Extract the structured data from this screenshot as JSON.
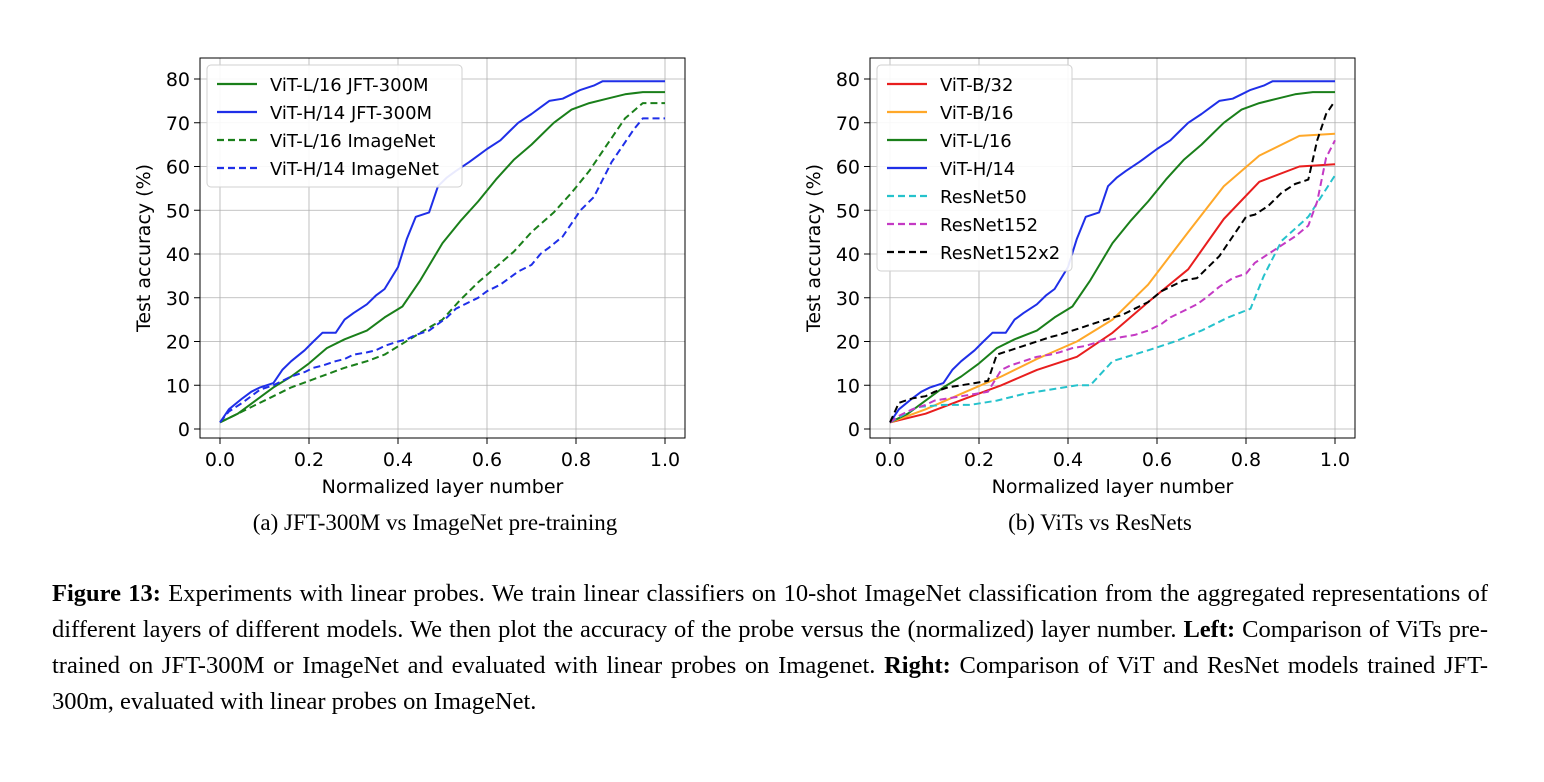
{
  "chart_data": [
    {
      "type": "line",
      "title": "",
      "xlabel": "Normalized layer number",
      "ylabel": "Test accuracy (%)",
      "xlim": [
        0.0,
        1.0
      ],
      "ylim": [
        0,
        80
      ],
      "xticks": [
        "0.0",
        "0.2",
        "0.4",
        "0.6",
        "0.8",
        "1.0"
      ],
      "yticks": [
        "0",
        "10",
        "20",
        "30",
        "40",
        "50",
        "60",
        "70",
        "80"
      ],
      "grid": true,
      "legend_position": "top-left",
      "series": [
        {
          "name": "ViT-L/16 JFT-300M",
          "color": "#1a7f1a",
          "dash": "solid",
          "x": [
            0.0,
            0.04,
            0.08,
            0.12,
            0.16,
            0.2,
            0.24,
            0.28,
            0.33,
            0.37,
            0.41,
            0.45,
            0.5,
            0.54,
            0.58,
            0.62,
            0.66,
            0.7,
            0.75,
            0.79,
            0.83,
            0.87,
            0.91,
            0.95,
            1.0
          ],
          "y": [
            1.5,
            3.5,
            6.5,
            9.5,
            12,
            15,
            18.5,
            20.5,
            22.5,
            25.5,
            28,
            34,
            42.5,
            47.5,
            52,
            57,
            61.5,
            65,
            70,
            73,
            74.5,
            75.5,
            76.5,
            77,
            77
          ]
        },
        {
          "name": "ViT-H/14 JFT-300M",
          "color": "#1f2fe8",
          "dash": "solid",
          "x": [
            0.0,
            0.02,
            0.05,
            0.07,
            0.09,
            0.12,
            0.14,
            0.16,
            0.19,
            0.21,
            0.23,
            0.26,
            0.28,
            0.3,
            0.33,
            0.35,
            0.37,
            0.4,
            0.42,
            0.44,
            0.47,
            0.49,
            0.51,
            0.53,
            0.56,
            0.58,
            0.6,
            0.63,
            0.65,
            0.67,
            0.7,
            0.72,
            0.74,
            0.77,
            0.79,
            0.81,
            0.84,
            0.86,
            0.88,
            0.91,
            0.93,
            0.95,
            0.98,
            1.0
          ],
          "y": [
            1.5,
            4.5,
            7,
            8.5,
            9.5,
            10.5,
            13.5,
            15.5,
            18,
            20,
            22,
            22,
            25,
            26.5,
            28.5,
            30.5,
            32,
            37,
            43.5,
            48.5,
            49.5,
            55.5,
            57.5,
            59,
            61,
            62.5,
            64,
            66,
            68,
            70,
            72,
            73.5,
            75,
            75.5,
            76.5,
            77.5,
            78.5,
            79.5,
            79.5,
            79.5,
            79.5,
            79.5,
            79.5,
            79.5
          ]
        },
        {
          "name": "ViT-L/16 ImageNet",
          "color": "#1a7f1a",
          "dash": "dashed",
          "x": [
            0.0,
            0.04,
            0.08,
            0.12,
            0.16,
            0.2,
            0.24,
            0.28,
            0.33,
            0.37,
            0.41,
            0.45,
            0.5,
            0.54,
            0.58,
            0.62,
            0.66,
            0.7,
            0.75,
            0.79,
            0.83,
            0.87,
            0.91,
            0.95,
            0.97,
            1.0
          ],
          "y": [
            1.5,
            3.5,
            5.5,
            7.5,
            9.5,
            11,
            12.5,
            14,
            15.5,
            17,
            19.5,
            22,
            25,
            29.5,
            33.5,
            37,
            40.5,
            45,
            49.5,
            54,
            59,
            65,
            71,
            74.5,
            74.5,
            74.5
          ]
        },
        {
          "name": "ViT-H/14 ImageNet",
          "color": "#1f2fe8",
          "dash": "dashed",
          "x": [
            0.0,
            0.02,
            0.05,
            0.07,
            0.09,
            0.12,
            0.14,
            0.16,
            0.19,
            0.21,
            0.23,
            0.26,
            0.28,
            0.3,
            0.33,
            0.35,
            0.37,
            0.4,
            0.42,
            0.44,
            0.47,
            0.49,
            0.51,
            0.53,
            0.56,
            0.58,
            0.6,
            0.63,
            0.65,
            0.67,
            0.7,
            0.72,
            0.74,
            0.77,
            0.79,
            0.81,
            0.84,
            0.86,
            0.88,
            0.91,
            0.93,
            0.95,
            0.98,
            1.0
          ],
          "y": [
            1.5,
            4,
            6,
            7.5,
            9,
            10,
            11,
            12,
            13,
            14,
            14.5,
            15.5,
            16,
            17,
            17.5,
            18,
            19,
            20,
            20.5,
            21.5,
            22.5,
            24,
            25.5,
            27.5,
            29,
            30,
            31.5,
            33,
            34.5,
            36,
            37.5,
            40,
            41.5,
            44,
            47,
            50,
            53,
            57,
            61,
            65.5,
            68.5,
            71,
            71,
            71
          ]
        }
      ]
    },
    {
      "type": "line",
      "title": "",
      "xlabel": "Normalized layer number",
      "ylabel": "Test accuracy (%)",
      "xlim": [
        0.0,
        1.0
      ],
      "ylim": [
        0,
        80
      ],
      "xticks": [
        "0.0",
        "0.2",
        "0.4",
        "0.6",
        "0.8",
        "1.0"
      ],
      "yticks": [
        "0",
        "10",
        "20",
        "30",
        "40",
        "50",
        "60",
        "70",
        "80"
      ],
      "grid": true,
      "legend_position": "top-left",
      "series": [
        {
          "name": "ViT-B/32",
          "color": "#e81e1e",
          "dash": "solid",
          "x": [
            0.0,
            0.08,
            0.17,
            0.25,
            0.33,
            0.42,
            0.5,
            0.58,
            0.67,
            0.75,
            0.83,
            0.92,
            1.0
          ],
          "y": [
            1.5,
            3.5,
            7,
            10,
            13.5,
            16.5,
            22,
            29,
            36.5,
            48,
            56.5,
            60,
            60.5
          ]
        },
        {
          "name": "ViT-B/16",
          "color": "#ffa829",
          "dash": "solid",
          "x": [
            0.0,
            0.08,
            0.17,
            0.25,
            0.33,
            0.42,
            0.5,
            0.58,
            0.67,
            0.75,
            0.83,
            0.92,
            1.0
          ],
          "y": [
            1.5,
            4.5,
            8.5,
            12,
            16,
            20,
            25,
            33,
            45,
            55.5,
            62.5,
            67,
            67.5
          ]
        },
        {
          "name": "ViT-L/16",
          "color": "#1a7f1a",
          "dash": "solid",
          "x": [
            0.0,
            0.04,
            0.08,
            0.12,
            0.16,
            0.2,
            0.24,
            0.28,
            0.33,
            0.37,
            0.41,
            0.45,
            0.5,
            0.54,
            0.58,
            0.62,
            0.66,
            0.7,
            0.75,
            0.79,
            0.83,
            0.87,
            0.91,
            0.95,
            1.0
          ],
          "y": [
            1.5,
            3.5,
            6.5,
            9.5,
            12,
            15,
            18.5,
            20.5,
            22.5,
            25.5,
            28,
            34,
            42.5,
            47.5,
            52,
            57,
            61.5,
            65,
            70,
            73,
            74.5,
            75.5,
            76.5,
            77,
            77
          ]
        },
        {
          "name": "ViT-H/14",
          "color": "#1f2fe8",
          "dash": "solid",
          "x": [
            0.0,
            0.02,
            0.05,
            0.07,
            0.09,
            0.12,
            0.14,
            0.16,
            0.19,
            0.21,
            0.23,
            0.26,
            0.28,
            0.3,
            0.33,
            0.35,
            0.37,
            0.4,
            0.42,
            0.44,
            0.47,
            0.49,
            0.51,
            0.53,
            0.56,
            0.58,
            0.6,
            0.63,
            0.65,
            0.67,
            0.7,
            0.72,
            0.74,
            0.77,
            0.79,
            0.81,
            0.84,
            0.86,
            0.88,
            0.91,
            0.93,
            0.95,
            0.98,
            1.0
          ],
          "y": [
            1.5,
            4.5,
            7,
            8.5,
            9.5,
            10.5,
            13.5,
            15.5,
            18,
            20,
            22,
            22,
            25,
            26.5,
            28.5,
            30.5,
            32,
            37,
            43.5,
            48.5,
            49.5,
            55.5,
            57.5,
            59,
            61,
            62.5,
            64,
            66,
            68,
            70,
            72,
            73.5,
            75,
            75.5,
            76.5,
            77.5,
            78.5,
            79.5,
            79.5,
            79.5,
            79.5,
            79.5,
            79.5,
            79.5
          ]
        },
        {
          "name": "ResNet50",
          "color": "#25c2cc",
          "dash": "dashed",
          "x": [
            0.0,
            0.06,
            0.12,
            0.18,
            0.24,
            0.3,
            0.36,
            0.42,
            0.45,
            0.5,
            0.58,
            0.64,
            0.7,
            0.76,
            0.81,
            0.84,
            0.88,
            0.94,
            1.0
          ],
          "y": [
            1.5,
            5,
            5.5,
            5.5,
            6.5,
            8,
            9,
            10,
            10,
            15.5,
            18,
            20,
            22.5,
            25.5,
            27.5,
            35,
            43,
            48.5,
            58
          ]
        },
        {
          "name": "ResNet152",
          "color": "#c43ac4",
          "dash": "dashed",
          "x": [
            0.0,
            0.02,
            0.05,
            0.08,
            0.1,
            0.13,
            0.16,
            0.19,
            0.22,
            0.25,
            0.27,
            0.3,
            0.33,
            0.36,
            0.38,
            0.41,
            0.44,
            0.47,
            0.5,
            0.52,
            0.55,
            0.58,
            0.61,
            0.63,
            0.66,
            0.69,
            0.71,
            0.74,
            0.77,
            0.8,
            0.82,
            0.85,
            0.88,
            0.91,
            0.94,
            0.96,
            0.98,
            1.0
          ],
          "y": [
            1.5,
            3,
            4.5,
            5.5,
            6.5,
            7,
            7.5,
            8,
            8.5,
            13.5,
            14.5,
            15.5,
            16.5,
            17,
            17.5,
            18.5,
            19,
            20,
            20.5,
            21,
            21.5,
            22.5,
            24,
            25.5,
            27,
            28.5,
            30,
            32.5,
            34.5,
            35.5,
            38,
            40,
            42,
            44,
            46.5,
            52,
            62,
            66
          ]
        },
        {
          "name": "ResNet152x2",
          "color": "#000000",
          "dash": "dashed",
          "x": [
            0.0,
            0.02,
            0.05,
            0.08,
            0.1,
            0.13,
            0.16,
            0.19,
            0.22,
            0.24,
            0.27,
            0.3,
            0.33,
            0.36,
            0.38,
            0.41,
            0.44,
            0.47,
            0.5,
            0.52,
            0.55,
            0.58,
            0.61,
            0.63,
            0.66,
            0.69,
            0.71,
            0.74,
            0.77,
            0.8,
            0.82,
            0.85,
            0.88,
            0.91,
            0.94,
            0.96,
            0.98,
            1.0
          ],
          "y": [
            1.5,
            6,
            7,
            7.5,
            8.5,
            9.5,
            10,
            10.5,
            11,
            17,
            18,
            19,
            20,
            21,
            21.5,
            22.5,
            23.5,
            24.5,
            25.5,
            26,
            27.5,
            29,
            31.5,
            32.5,
            34,
            34.5,
            36.5,
            39.5,
            44,
            48.5,
            49,
            51,
            54,
            56,
            57,
            66,
            72,
            75
          ]
        }
      ]
    }
  ],
  "subcaptions": {
    "left": "(a) JFT-300M vs ImageNet pre-training",
    "right": "(b) ViTs vs ResNets"
  },
  "caption": {
    "label": "Figure 13:",
    "text1": " Experiments with linear probes. We train linear classifiers on 10-shot ImageNet classification from the aggregated representations of different layers of different models. We then plot the accuracy of the probe versus the (normalized) layer number. ",
    "left_label": "Left:",
    "text2": " Comparison of ViTs pre-trained on JFT-300M or ImageNet and evaluated with linear probes on Imagenet. ",
    "right_label": "Right:",
    "text3": " Comparison of ViT and ResNet models trained JFT-300m, evaluated with linear probes on ImageNet."
  }
}
